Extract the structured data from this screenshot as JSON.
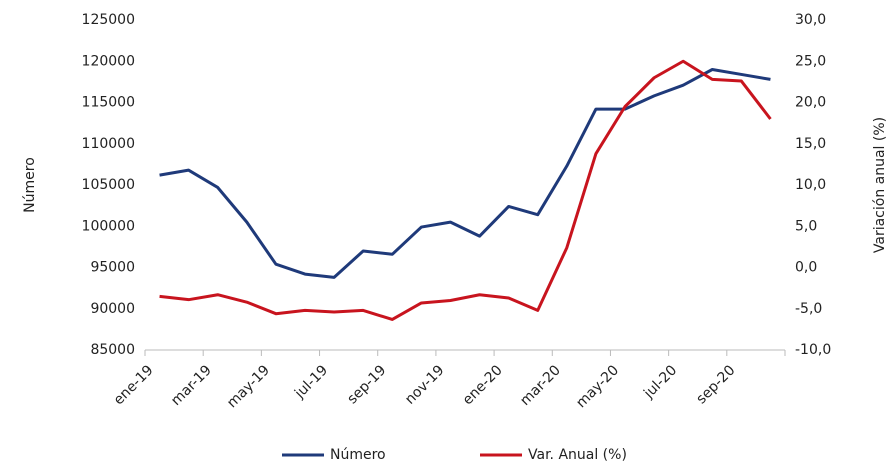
{
  "chart_data": {
    "type": "line",
    "y_label": "Número",
    "y2_label": "Variación anual (%)",
    "categories": [
      "ene-19",
      null,
      "mar-19",
      null,
      "may-19",
      null,
      "jul-19",
      null,
      "sep-19",
      null,
      "nov-19",
      null,
      "ene-20",
      null,
      "mar-20",
      null,
      "may-20",
      null,
      "jul-20",
      null,
      "sep-20",
      null
    ],
    "series": [
      {
        "name": "Número",
        "color": "#1f3a7a",
        "values": [
          106200,
          106800,
          104700,
          100500,
          95400,
          94200,
          93800,
          97000,
          96600,
          99900,
          100500,
          98800,
          102400,
          101400,
          107300,
          114200,
          114200,
          115800,
          117100,
          119000,
          118400,
          117800
        ]
      },
      {
        "name": "Var. Anual (%)",
        "color": "#c8141e",
        "axis": "y2",
        "values": [
          -3.5,
          -3.9,
          -3.3,
          -4.2,
          -5.6,
          -5.2,
          -5.4,
          -5.2,
          -6.3,
          -4.3,
          -4.0,
          -3.3,
          -3.7,
          -5.2,
          2.4,
          13.8,
          19.5,
          23.0,
          25.0,
          22.8,
          22.6,
          18.0
        ]
      }
    ],
    "ylim": [
      85000,
      125000
    ],
    "yticks": [
      85000,
      90000,
      95000,
      100000,
      105000,
      110000,
      115000,
      120000,
      125000
    ],
    "y2lim": [
      -10,
      30
    ],
    "y2ticks": [
      {
        "value": -10,
        "label": "-10,0"
      },
      {
        "value": -5,
        "label": "-5,0"
      },
      {
        "value": 0,
        "label": "0,0"
      },
      {
        "value": 5,
        "label": "5,0"
      },
      {
        "value": 10,
        "label": "10,0"
      },
      {
        "value": 15,
        "label": "15,0"
      },
      {
        "value": 20,
        "label": "20,0"
      },
      {
        "value": 25,
        "label": "25,0"
      },
      {
        "value": 30,
        "label": "30,0"
      }
    ],
    "legend": "bottom"
  }
}
